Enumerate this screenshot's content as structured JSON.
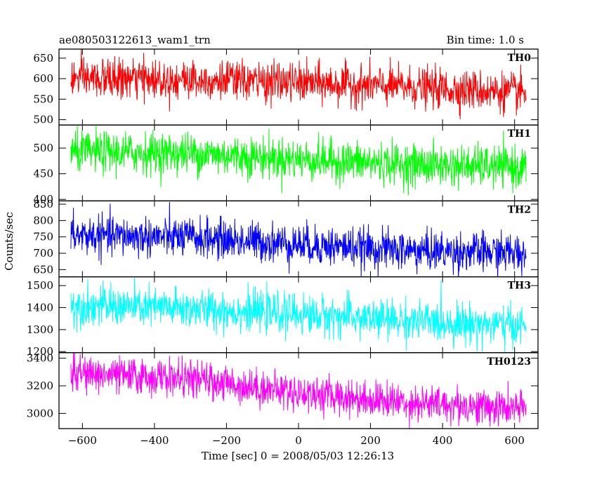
{
  "header": {
    "title": "ae080503122613_wam1_trn",
    "bin_time": "Bin time: 1.0 s"
  },
  "chart_data": {
    "type": "line",
    "xlabel": "Time [sec] 0 = 2008/05/03 12:26:13",
    "ylabel": "Counts/sec",
    "xlim": [
      -665,
      665
    ],
    "xticks": [
      -600,
      -400,
      -200,
      0,
      200,
      400,
      600
    ],
    "xtick_labels": [
      "−600",
      "−400",
      "−200",
      "0",
      "200",
      "400",
      "600"
    ],
    "x_start": -632,
    "x_end": 632,
    "bin": 1.0,
    "grid": false,
    "panels": [
      {
        "name": "TH0",
        "color": "#ff0000",
        "ylim": [
          487,
          672
        ],
        "yticks": [
          500,
          550,
          600,
          650
        ],
        "ytick_labels": [
          "500",
          "550",
          "600",
          "650"
        ],
        "trend_points": [
          [
            -632,
            600
          ],
          [
            -300,
            598
          ],
          [
            0,
            590
          ],
          [
            300,
            580
          ],
          [
            632,
            565
          ]
        ],
        "noise_sd": 24
      },
      {
        "name": "TH1",
        "color": "#00ff00",
        "ylim": [
          397,
          545
        ],
        "yticks": [
          400,
          450,
          500
        ],
        "ytick_labels": [
          "400",
          "450",
          "500"
        ],
        "trend_points": [
          [
            -632,
            492
          ],
          [
            -300,
            490
          ],
          [
            0,
            478
          ],
          [
            300,
            468
          ],
          [
            632,
            462
          ]
        ],
        "noise_sd": 20
      },
      {
        "name": "TH2",
        "color": "#0000ff",
        "ylim": [
          628,
          860
        ],
        "yticks": [
          650,
          700,
          750,
          800,
          850
        ],
        "ytick_labels": [
          "650",
          "700",
          "750",
          "800",
          "850"
        ],
        "trend_points": [
          [
            -632,
            755
          ],
          [
            -300,
            748
          ],
          [
            0,
            728
          ],
          [
            300,
            708
          ],
          [
            632,
            700
          ]
        ],
        "noise_sd": 30
      },
      {
        "name": "TH3",
        "color": "#00ffff",
        "ylim": [
          1195,
          1540
        ],
        "yticks": [
          1200,
          1300,
          1400,
          1500
        ],
        "ytick_labels": [
          "1200",
          "1300",
          "1400",
          "1500"
        ],
        "trend_points": [
          [
            -632,
            1410
          ],
          [
            -300,
            1395
          ],
          [
            0,
            1370
          ],
          [
            300,
            1340
          ],
          [
            632,
            1315
          ]
        ],
        "noise_sd": 45
      },
      {
        "name": "TH0123",
        "color": "#ff00ff",
        "ylim": [
          2890,
          3440
        ],
        "yticks": [
          3000,
          3200,
          3400
        ],
        "ytick_labels": [
          "3000",
          "3200",
          "3400"
        ],
        "trend_points": [
          [
            -632,
            3290
          ],
          [
            -300,
            3250
          ],
          [
            0,
            3150
          ],
          [
            300,
            3080
          ],
          [
            632,
            3030
          ]
        ],
        "noise_sd": 65
      }
    ]
  }
}
